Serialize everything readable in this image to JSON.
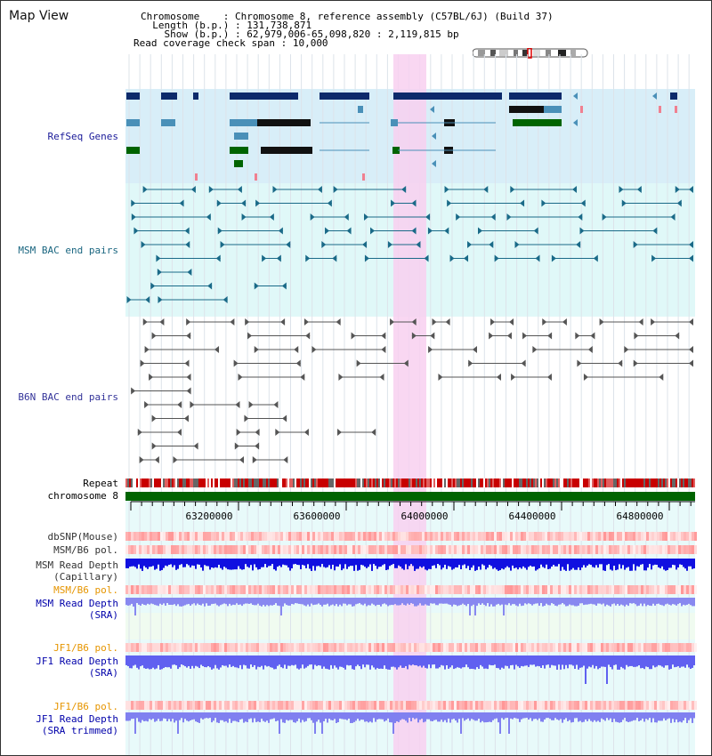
{
  "title": "Map View",
  "info": {
    "chromosome_key": "Chromosome    ",
    "chromosome_value": ": Chromosome 8, reference assembly (C57BL/6J) (Build 37)",
    "length_key": "  Length (b.p.) ",
    "length_value": ": 131,738,871",
    "show_key": "    Show (b.p.) ",
    "show_value": ": 62,979,006-65,098,820 : 2,119,815 bp",
    "coverage_key": "Read coverage check span ",
    "coverage_value": ": 10,000"
  },
  "tracks": {
    "refseq": {
      "label": "RefSeq Genes",
      "color": "#1a1a99"
    },
    "msm_bac": {
      "label": "MSM BAC end pairs",
      "color": "#1a6680"
    },
    "b6n_bac": {
      "label": "B6N BAC end pairs",
      "color": "#333399"
    },
    "repeat": {
      "label": "Repeat",
      "color": "#000000"
    },
    "chromosome": {
      "label": "chromosome 8",
      "color": "#000000"
    },
    "dbsnp": {
      "label": "dbSNP(Mouse)",
      "color": "#333333"
    },
    "msm_b6_pol": {
      "label": "MSM/B6 pol.",
      "color": "#333333"
    },
    "msm_depth_cap": {
      "label1": "MSM Read Depth",
      "label2": "(Capillary)",
      "color": "#333333"
    },
    "msm_b6_pol_sra": {
      "label": "MSM/B6 pol.",
      "color": "#e69500"
    },
    "msm_depth_sra": {
      "label1": "MSM Read Depth",
      "label2": "(SRA)",
      "color": "#0000aa"
    },
    "jf1_b6_pol": {
      "label": "JF1/B6 pol.",
      "color": "#e69500"
    },
    "jf1_depth_sra": {
      "label1": "JF1 Read Depth",
      "label2": "(SRA)",
      "color": "#0000aa"
    },
    "jf1_b6_pol_2": {
      "label": "JF1/B6 pol.",
      "color": "#e69500"
    },
    "jf1_depth_trim": {
      "label1": "JF1 Read Depth",
      "label2": "(SRA trimmed)",
      "color": "#0000aa"
    }
  },
  "axis": {
    "ticks": [
      "63200000",
      "63600000",
      "64000000",
      "64400000",
      "64800000"
    ]
  },
  "colors": {
    "highlight": "#f8d0f0",
    "refseq_bg": "#d8eef8",
    "msm_bg": "#e0f8f8",
    "gene_dark": "#0d2a6b",
    "gene_mid": "#4a90b8",
    "gene_green": "#006400",
    "bac_msm": "#1a6a88",
    "bac_b6n": "#555555"
  }
}
